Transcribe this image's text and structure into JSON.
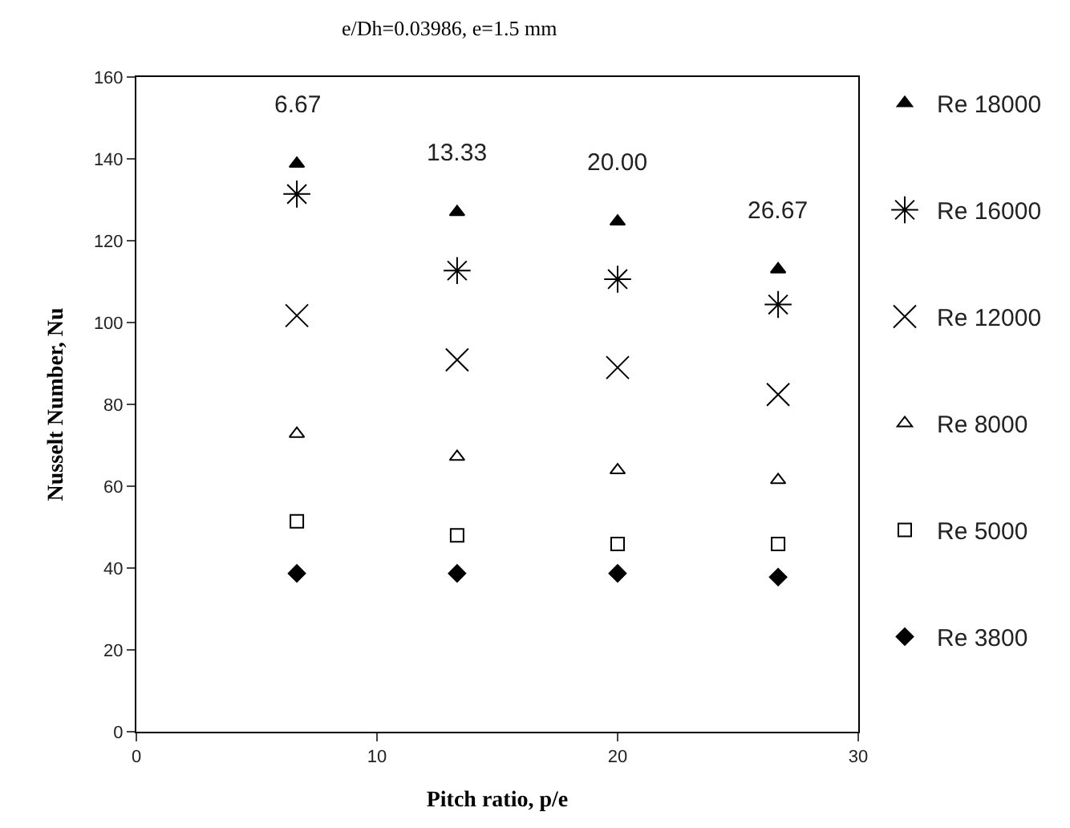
{
  "chart_data": {
    "type": "scatter",
    "title": "e/Dh=0.03986, e=1.5 mm",
    "xlabel": "Pitch ratio, p/e",
    "ylabel": "Nusselt Number, Nu",
    "x": [
      6.67,
      13.33,
      20.0,
      26.67
    ],
    "series": [
      {
        "name": "Re 18000",
        "color": "#000000",
        "marker": "triangle",
        "values": [
          138.8,
          127.0,
          124.7,
          113.0
        ]
      },
      {
        "name": "Re 16000",
        "color": "#000000",
        "marker": "cross",
        "values": [
          131.4,
          112.7,
          110.6,
          104.4
        ]
      },
      {
        "name": "Re 12000",
        "color": "#000000",
        "marker": "cross-open",
        "values": [
          101.7,
          90.9,
          89.0,
          82.4
        ]
      },
      {
        "name": "Re 8000",
        "color": "#000000",
        "marker": "triangle-open",
        "values": [
          72.8,
          67.2,
          63.9,
          61.5
        ]
      },
      {
        "name": "Re 5000",
        "color": "#000000",
        "marker": "square-open",
        "values": [
          51.4,
          48.0,
          45.9,
          45.9
        ]
      },
      {
        "name": "Re 3800",
        "color": "#000000",
        "marker": "diamond",
        "values": [
          38.7,
          38.7,
          38.7,
          37.8
        ]
      }
    ],
    "annotations": [
      "6.67",
      "13.33",
      "20.00",
      "26.67"
    ],
    "xlim": [
      0,
      30
    ],
    "xticks": [
      0,
      10,
      20,
      30
    ],
    "ylim": [
      0,
      160
    ],
    "yticks": [
      0,
      20,
      40,
      60,
      80,
      100,
      120,
      140,
      160
    ],
    "legend": "right"
  }
}
